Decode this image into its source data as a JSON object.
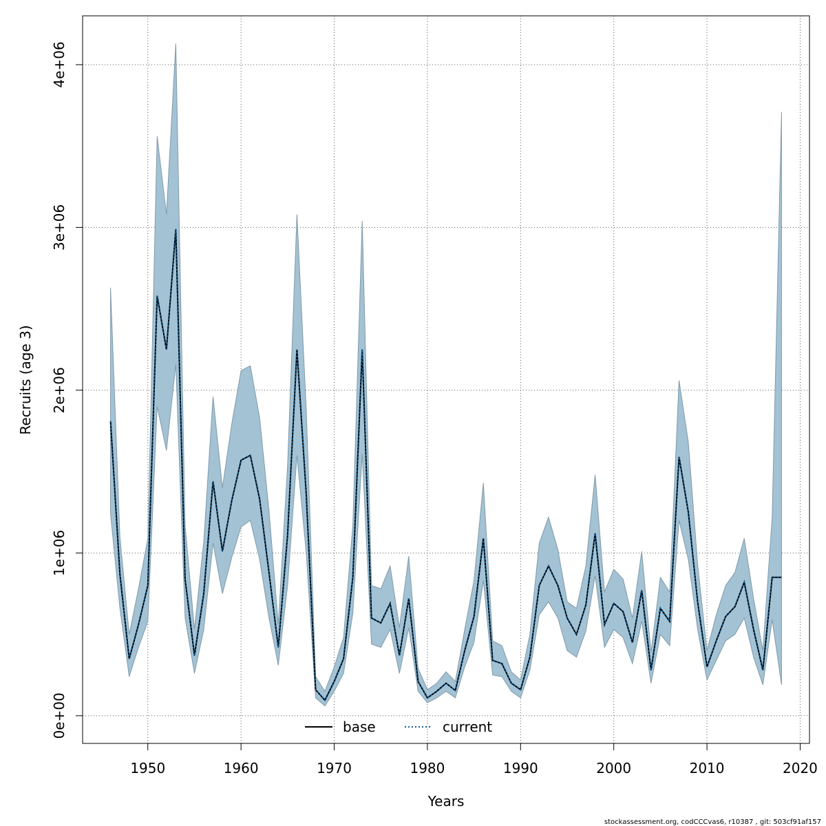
{
  "chart_data": {
    "type": "line",
    "xlabel": "Years",
    "ylabel": "Recruits (age 3)",
    "xlim": [
      1943,
      2021
    ],
    "ylim": [
      -170000,
      4300000
    ],
    "x_ticks": [
      1950,
      1960,
      1970,
      1980,
      1990,
      2000,
      2010,
      2020
    ],
    "x_tick_labels": [
      "1950",
      "1960",
      "1970",
      "1980",
      "1990",
      "2000",
      "2010",
      "2020"
    ],
    "y_ticks": [
      0,
      1000000,
      2000000,
      3000000,
      4000000
    ],
    "y_tick_labels": [
      "0e+00",
      "1e+06",
      "2e+06",
      "3e+06",
      "4e+06"
    ],
    "grid": true,
    "legend_position": "bottom-center",
    "colors": {
      "band": "#a3c2d4",
      "band_edge": "#7f9aaa",
      "base": "#000000",
      "current": "#0b5e99",
      "grid": "#555555"
    },
    "x": [
      1946,
      1947,
      1948,
      1949,
      1950,
      1951,
      1952,
      1953,
      1954,
      1955,
      1956,
      1957,
      1958,
      1959,
      1960,
      1961,
      1962,
      1963,
      1964,
      1965,
      1966,
      1967,
      1968,
      1969,
      1970,
      1971,
      1972,
      1973,
      1974,
      1975,
      1976,
      1977,
      1978,
      1979,
      1980,
      1981,
      1982,
      1983,
      1984,
      1985,
      1986,
      1987,
      1988,
      1989,
      1990,
      1991,
      1992,
      1993,
      1994,
      1995,
      1996,
      1997,
      1998,
      1999,
      2000,
      2001,
      2002,
      2003,
      2004,
      2005,
      2006,
      2007,
      2008,
      2009,
      2010,
      2011,
      2012,
      2013,
      2014,
      2015,
      2016,
      2017,
      2018
    ],
    "series": [
      {
        "name": "base",
        "style": "solid",
        "values": [
          1810000,
          870000,
          350000,
          560000,
          800000,
          2580000,
          2250000,
          2990000,
          840000,
          370000,
          750000,
          1440000,
          1010000,
          1320000,
          1570000,
          1600000,
          1330000,
          880000,
          420000,
          1110000,
          2250000,
          1360000,
          160000,
          95000,
          210000,
          350000,
          850000,
          2250000,
          600000,
          570000,
          690000,
          370000,
          720000,
          210000,
          110000,
          150000,
          200000,
          155000,
          400000,
          610000,
          1090000,
          340000,
          320000,
          200000,
          160000,
          360000,
          800000,
          920000,
          800000,
          600000,
          500000,
          680000,
          1120000,
          560000,
          690000,
          640000,
          450000,
          770000,
          280000,
          660000,
          580000,
          1590000,
          1250000,
          700000,
          300000,
          460000,
          610000,
          670000,
          820000,
          530000,
          280000,
          850000,
          850000
        ]
      },
      {
        "name": "current",
        "style": "dotted",
        "values": [
          1810000,
          870000,
          350000,
          560000,
          800000,
          2580000,
          2250000,
          2990000,
          840000,
          370000,
          750000,
          1440000,
          1010000,
          1320000,
          1570000,
          1600000,
          1330000,
          880000,
          420000,
          1110000,
          2250000,
          1360000,
          160000,
          95000,
          210000,
          350000,
          850000,
          2250000,
          600000,
          570000,
          690000,
          370000,
          720000,
          210000,
          110000,
          150000,
          200000,
          155000,
          400000,
          610000,
          1090000,
          340000,
          320000,
          200000,
          160000,
          360000,
          800000,
          920000,
          800000,
          600000,
          500000,
          680000,
          1120000,
          560000,
          690000,
          640000,
          450000,
          770000,
          280000,
          660000,
          580000,
          1590000,
          1250000,
          700000,
          300000,
          460000,
          610000,
          670000,
          820000,
          530000,
          280000,
          850000,
          850000
        ]
      }
    ],
    "ci_lower": [
      1240000,
      660000,
      240000,
      420000,
      580000,
      1900000,
      1630000,
      2160000,
      600000,
      260000,
      530000,
      1060000,
      750000,
      970000,
      1160000,
      1200000,
      960000,
      600000,
      310000,
      800000,
      1600000,
      1000000,
      110000,
      60000,
      150000,
      260000,
      630000,
      1610000,
      440000,
      420000,
      530000,
      260000,
      540000,
      150000,
      80000,
      110000,
      150000,
      110000,
      300000,
      450000,
      830000,
      250000,
      240000,
      150000,
      110000,
      280000,
      620000,
      700000,
      600000,
      400000,
      360000,
      520000,
      860000,
      420000,
      530000,
      480000,
      320000,
      580000,
      200000,
      500000,
      430000,
      1200000,
      960000,
      530000,
      220000,
      340000,
      460000,
      500000,
      600000,
      360000,
      190000,
      590000,
      190000
    ],
    "ci_upper": [
      2630000,
      1100000,
      500000,
      780000,
      1090000,
      3560000,
      3080000,
      4130000,
      1170000,
      530000,
      1070000,
      1960000,
      1400000,
      1790000,
      2120000,
      2150000,
      1830000,
      1260000,
      560000,
      1540000,
      3080000,
      1880000,
      240000,
      150000,
      300000,
      480000,
      1170000,
      3040000,
      800000,
      780000,
      920000,
      540000,
      980000,
      290000,
      160000,
      200000,
      270000,
      210000,
      530000,
      830000,
      1430000,
      460000,
      430000,
      270000,
      220000,
      500000,
      1060000,
      1220000,
      1020000,
      700000,
      660000,
      920000,
      1480000,
      760000,
      900000,
      840000,
      600000,
      1010000,
      390000,
      850000,
      760000,
      2060000,
      1680000,
      930000,
      400000,
      620000,
      800000,
      880000,
      1090000,
      720000,
      400000,
      1220000,
      3710000
    ]
  },
  "legend": {
    "base": "base",
    "current": "current"
  },
  "footer": "stockassessment.org, codCCCvas6, r10387 , git: 503cf91af157"
}
